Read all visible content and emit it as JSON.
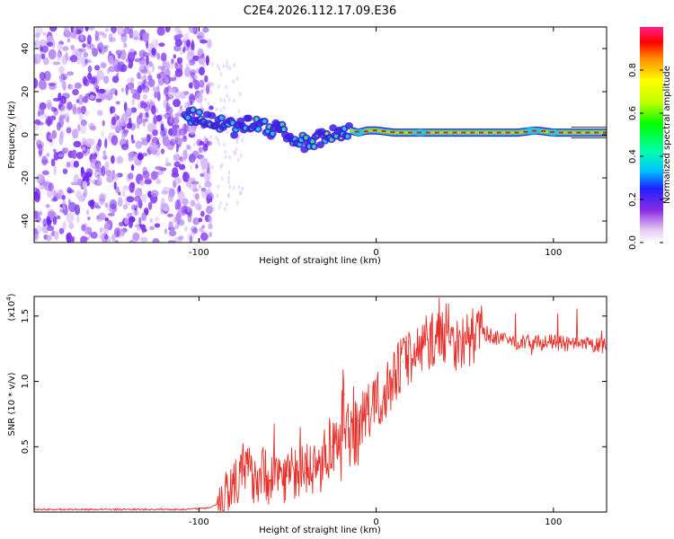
{
  "chart_data": [
    {
      "type": "heatmap",
      "title": "C2E4.2026.112.17.09.E36",
      "xlabel": "Height of straight line (km)",
      "ylabel": "Frequency (Hz)",
      "xlim": [
        -193,
        130
      ],
      "ylim": [
        -50,
        50
      ],
      "xticks": [
        -100,
        0,
        100
      ],
      "yticks": [
        -40,
        -20,
        0,
        20,
        40
      ],
      "xtick_labels": [
        "-100",
        "0",
        "100"
      ],
      "ytick_labels": [
        "-40",
        "-20",
        "0",
        "20",
        "40"
      ],
      "noise_region": {
        "x_from": -193,
        "x_to": -93,
        "freq_from": -50,
        "freq_to": 50
      },
      "signal_track": {
        "x": [
          -108,
          -100,
          -95,
          -90,
          -85,
          -80,
          -75,
          -70,
          -65,
          -60,
          -55,
          -50,
          -45,
          -40,
          -35,
          -30,
          -25,
          -20,
          -15,
          -10,
          -5,
          0,
          10,
          20,
          40,
          60,
          80,
          90,
          100,
          110,
          130
        ],
        "freq": [
          8,
          9,
          8,
          6,
          4,
          3,
          5,
          6,
          4,
          2,
          3,
          1,
          -2,
          -4,
          -3,
          -1,
          0,
          1,
          2,
          1,
          2,
          2,
          1,
          1,
          1,
          1,
          1,
          2,
          1,
          1,
          1
        ]
      },
      "colorbar": {
        "label": "Normalized spectral amplitude",
        "ticks": [
          0.0,
          0.2,
          0.4,
          0.6,
          0.8
        ],
        "tick_labels": [
          "0.0",
          "0.2",
          "0.4",
          "0.6",
          "0.8"
        ],
        "range": [
          0,
          1
        ]
      }
    },
    {
      "type": "line",
      "xlabel": "Height of straight line (km)",
      "ylabel": "SNR (10 * v/v)",
      "multiplier_base": "(x10",
      "multiplier_exp": "4",
      "multiplier_close": ")",
      "xlim": [
        -193,
        130
      ],
      "ylim": [
        0,
        1.65
      ],
      "xticks": [
        -100,
        0,
        100
      ],
      "yticks": [
        0.5,
        1.0,
        1.5
      ],
      "xtick_labels": [
        "-100",
        "0",
        "100"
      ],
      "ytick_labels": [
        "0.5",
        "1.0",
        "1.5"
      ],
      "color": "#e8302a",
      "series": [
        {
          "name": "SNR",
          "x": [
            -193,
            -170,
            -150,
            -130,
            -110,
            -95,
            -90,
            -85,
            -80,
            -75,
            -70,
            -65,
            -60,
            -55,
            -50,
            -45,
            -40,
            -35,
            -30,
            -25,
            -20,
            -18,
            -15,
            -10,
            -5,
            0,
            5,
            10,
            15,
            20,
            25,
            30,
            35,
            40,
            45,
            50,
            55,
            60,
            65,
            70,
            80,
            90,
            100,
            110,
            120,
            130
          ],
          "values": [
            0.02,
            0.02,
            0.02,
            0.02,
            0.02,
            0.03,
            0.06,
            0.15,
            0.25,
            0.32,
            0.28,
            0.3,
            0.27,
            0.3,
            0.28,
            0.32,
            0.3,
            0.35,
            0.4,
            0.5,
            0.45,
            0.9,
            0.55,
            0.7,
            0.75,
            0.85,
            0.9,
            1.05,
            1.15,
            1.2,
            1.25,
            1.3,
            1.35,
            1.35,
            1.3,
            1.3,
            1.35,
            1.38,
            1.35,
            1.32,
            1.3,
            1.3,
            1.3,
            1.28,
            1.28,
            1.27
          ]
        }
      ]
    }
  ]
}
